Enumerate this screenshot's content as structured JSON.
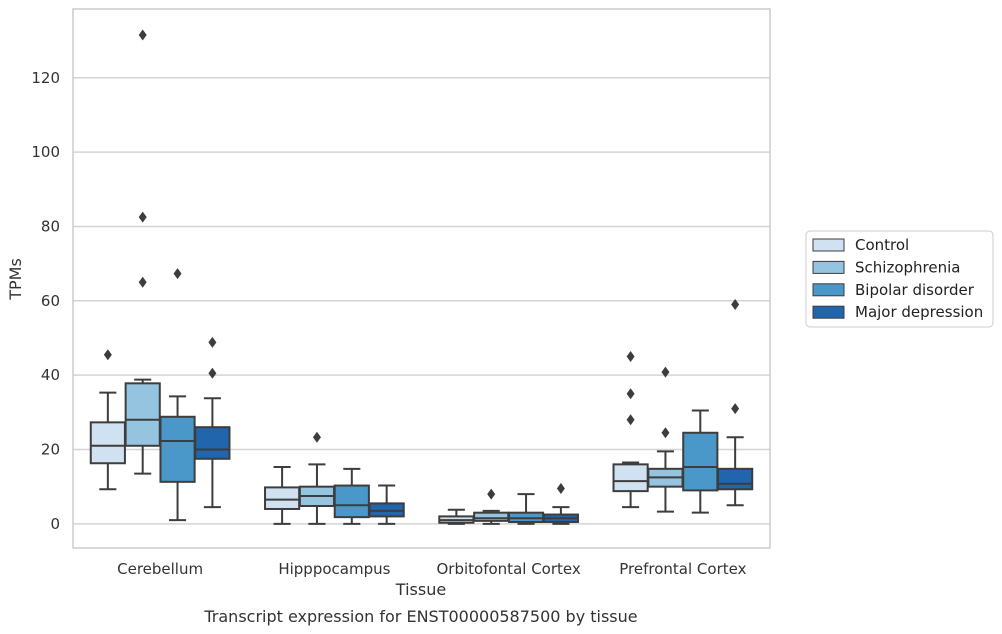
{
  "caption": "Transcript expression for ENST00000587500 by tissue",
  "chart_data": {
    "type": "box",
    "title": "",
    "xlabel": "Tissue",
    "ylabel": "TPMs",
    "ylim": [
      -6.5,
      138.5
    ],
    "yticks": [
      0,
      20,
      40,
      60,
      80,
      100,
      120
    ],
    "grid": "horizontal",
    "legend_position": "right",
    "categories": [
      "Cerebellum",
      "Hipppocampus",
      "Orbitofontal Cortex",
      "Prefrontal Cortex"
    ],
    "series": [
      {
        "name": "Control",
        "color": "#d0e1f2",
        "boxes": [
          {
            "whisker_low": 9.3,
            "q1": 16.3,
            "median": 21.0,
            "q3": 27.3,
            "whisker_high": 35.3,
            "outliers": [
              45.5
            ]
          },
          {
            "whisker_low": 0.0,
            "q1": 4.0,
            "median": 6.5,
            "q3": 9.8,
            "whisker_high": 15.3,
            "outliers": []
          },
          {
            "whisker_low": 0.0,
            "q1": 0.3,
            "median": 1.0,
            "q3": 2.0,
            "whisker_high": 3.8,
            "outliers": []
          },
          {
            "whisker_low": 4.5,
            "q1": 8.8,
            "median": 11.5,
            "q3": 16.0,
            "whisker_high": 16.5,
            "outliers": [
              45.0,
              35.0,
              28.0
            ]
          }
        ]
      },
      {
        "name": "Schizophrenia",
        "color": "#94c4df",
        "boxes": [
          {
            "whisker_low": 13.5,
            "q1": 21.0,
            "median": 28.0,
            "q3": 37.8,
            "whisker_high": 38.8,
            "outliers": [
              131.5,
              82.5,
              65.0
            ]
          },
          {
            "whisker_low": 0.0,
            "q1": 4.8,
            "median": 7.5,
            "q3": 10.0,
            "whisker_high": 16.0,
            "outliers": [
              23.3
            ]
          },
          {
            "whisker_low": 0.0,
            "q1": 0.8,
            "median": 1.5,
            "q3": 3.0,
            "whisker_high": 3.5,
            "outliers": [
              8.0
            ]
          },
          {
            "whisker_low": 3.3,
            "q1": 10.0,
            "median": 12.5,
            "q3": 14.8,
            "whisker_high": 19.5,
            "outliers": [
              40.8,
              24.5
            ]
          }
        ]
      },
      {
        "name": "Bipolar disorder",
        "color": "#4a98c9",
        "boxes": [
          {
            "whisker_low": 1.0,
            "q1": 11.3,
            "median": 22.3,
            "q3": 28.8,
            "whisker_high": 34.3,
            "outliers": [
              67.3
            ]
          },
          {
            "whisker_low": 0.0,
            "q1": 1.8,
            "median": 5.0,
            "q3": 10.3,
            "whisker_high": 14.8,
            "outliers": []
          },
          {
            "whisker_low": 0.0,
            "q1": 0.5,
            "median": 1.5,
            "q3": 3.0,
            "whisker_high": 8.0,
            "outliers": []
          },
          {
            "whisker_low": 3.0,
            "q1": 9.0,
            "median": 15.3,
            "q3": 24.5,
            "whisker_high": 30.5,
            "outliers": []
          }
        ]
      },
      {
        "name": "Major depression",
        "color": "#2166ac",
        "boxes": [
          {
            "whisker_low": 4.5,
            "q1": 17.5,
            "median": 20.0,
            "q3": 26.0,
            "whisker_high": 33.8,
            "outliers": [
              48.8,
              40.5
            ]
          },
          {
            "whisker_low": 0.0,
            "q1": 2.0,
            "median": 3.5,
            "q3": 5.5,
            "whisker_high": 10.3,
            "outliers": []
          },
          {
            "whisker_low": 0.0,
            "q1": 0.5,
            "median": 1.5,
            "q3": 2.5,
            "whisker_high": 4.5,
            "outliers": [
              9.5
            ]
          },
          {
            "whisker_low": 5.0,
            "q1": 9.3,
            "median": 10.8,
            "q3": 14.8,
            "whisker_high": 23.3,
            "outliers": [
              59.0,
              31.0
            ]
          }
        ]
      }
    ]
  }
}
